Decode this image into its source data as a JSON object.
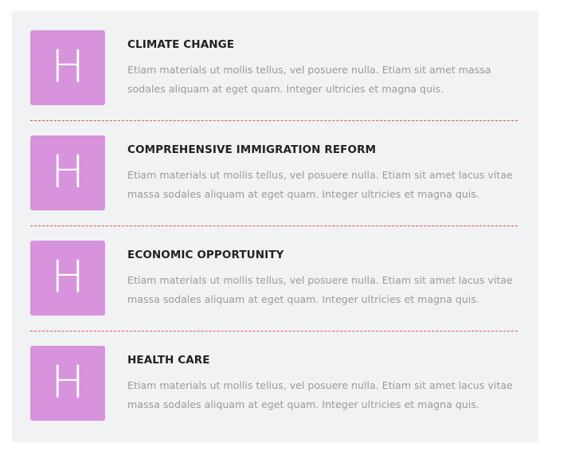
{
  "items": [
    {
      "icon_letter": "H",
      "icon_name": "h-letter-icon",
      "title": "CLIMATE CHANGE",
      "text": "Etiam materials ut mollis tellus, vel posuere nulla. Etiam sit amet massa sodales aliquam at eget quam. Integer ultricies et magna quis."
    },
    {
      "icon_letter": "H",
      "icon_name": "h-letter-icon",
      "title": "COMPREHENSIVE IMMIGRATION REFORM",
      "text": "Etiam materials ut mollis tellus, vel posuere nulla. Etiam sit amet lacus vitae massa sodales aliquam at eget quam. Integer ultricies et magna quis."
    },
    {
      "icon_letter": "H",
      "icon_name": "h-letter-icon",
      "title": "ECONOMIC OPPORTUNITY",
      "text": "Etiam materials ut mollis tellus, vel posuere nulla. Etiam sit amet lacus vitae massa sodales aliquam at eget quam. Integer ultricies et magna quis."
    },
    {
      "icon_letter": "H",
      "icon_name": "h-letter-icon",
      "title": "HEALTH CARE",
      "text": "Etiam materials ut mollis tellus, vel posuere nulla. Etiam sit amet lacus vitae massa sodales aliquam at eget quam. Integer ultricies et magna quis."
    }
  ],
  "colors": {
    "panel_background": "#f1f2f4",
    "icon_background": "#d893dd",
    "heading": "#222222",
    "body_text": "#9a9a9a",
    "divider": "#e0574f"
  }
}
